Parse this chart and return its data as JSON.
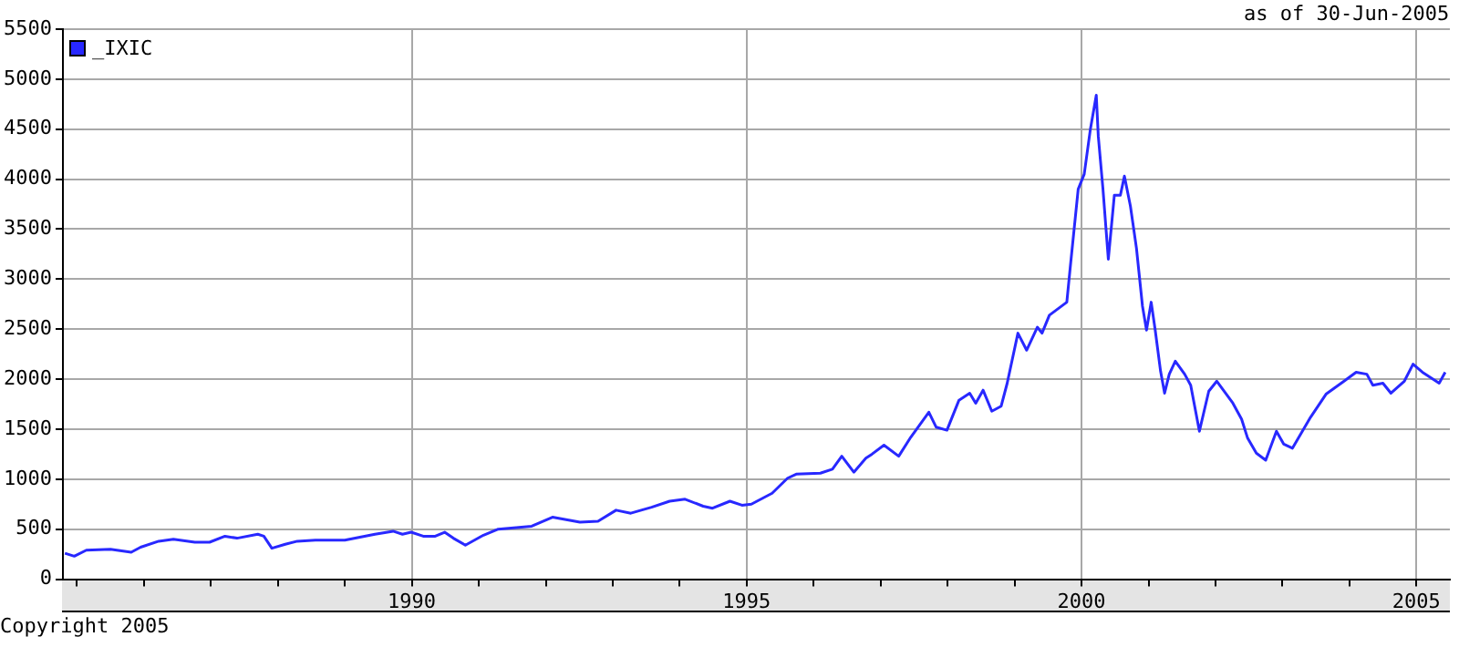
{
  "chart_data": {
    "type": "line",
    "annotations": [
      "as of 30-Jun-2005",
      "Copyright 2005"
    ],
    "xlim": [
      1984.79,
      2005.5
    ],
    "xticks": [
      {
        "value": 1985,
        "label": null
      },
      {
        "value": 1986,
        "label": null
      },
      {
        "value": 1987,
        "label": null
      },
      {
        "value": 1988,
        "label": null
      },
      {
        "value": 1989,
        "label": null
      },
      1990,
      {
        "value": 1991,
        "label": null
      },
      {
        "value": 1992,
        "label": null
      },
      {
        "value": 1993,
        "label": null
      },
      {
        "value": 1994,
        "label": null
      },
      1995,
      {
        "value": 1996,
        "label": null
      },
      {
        "value": 1997,
        "label": null
      },
      {
        "value": 1998,
        "label": null
      },
      {
        "value": 1999,
        "label": null
      },
      2000,
      {
        "value": 2001,
        "label": null
      },
      {
        "value": 2002,
        "label": null
      },
      {
        "value": 2003,
        "label": null
      },
      {
        "value": 2004,
        "label": null
      },
      2005
    ],
    "ylim": [
      0,
      5500
    ],
    "yticks": [
      0,
      500,
      1000,
      1500,
      2000,
      2500,
      3000,
      3500,
      4000,
      4500,
      5000,
      5500
    ],
    "grid": true,
    "legend": "top left",
    "marker": "none",
    "line_style": "solid",
    "series": [
      {
        "name": "_IXIC",
        "color": "#2828ff",
        "x": [
          1984.82,
          1984.96,
          1985.14,
          1985.5,
          1985.81,
          1985.95,
          1986.22,
          1986.44,
          1986.76,
          1986.98,
          1987.21,
          1987.39,
          1987.7,
          1987.79,
          1987.91,
          1988.11,
          1988.29,
          1988.56,
          1989.0,
          1989.45,
          1989.72,
          1989.86,
          1989.99,
          1990.17,
          1990.35,
          1990.49,
          1990.62,
          1990.8,
          1991.07,
          1991.29,
          1991.79,
          1992.1,
          1992.51,
          1992.78,
          1993.05,
          1993.27,
          1993.58,
          1993.85,
          1994.08,
          1994.35,
          1994.49,
          1994.75,
          1994.93,
          1995.07,
          1995.38,
          1995.61,
          1995.74,
          1996.1,
          1996.28,
          1996.42,
          1996.6,
          1996.78,
          1996.87,
          1997.05,
          1997.27,
          1997.45,
          1997.72,
          1997.83,
          1997.99,
          1998.17,
          1998.33,
          1998.42,
          1998.53,
          1998.66,
          1998.8,
          1998.89,
          1999.05,
          1999.18,
          1999.34,
          1999.41,
          1999.52,
          1999.78,
          1999.83,
          1999.95,
          2000.04,
          2000.13,
          2000.22,
          2000.25,
          2000.32,
          2000.4,
          2000.49,
          2000.58,
          2000.64,
          2000.73,
          2000.82,
          2000.91,
          2000.97,
          2001.04,
          2001.1,
          2001.18,
          2001.24,
          2001.31,
          2001.4,
          2001.54,
          2001.63,
          2001.76,
          2001.9,
          2002.02,
          2002.26,
          2002.39,
          2002.48,
          2002.61,
          2002.75,
          2002.91,
          2003.02,
          2003.15,
          2003.42,
          2003.65,
          2003.92,
          2004.1,
          2004.26,
          2004.35,
          2004.5,
          2004.62,
          2004.82,
          2004.95,
          2005.09,
          2005.34,
          2005.43
        ],
        "values": [
          260,
          230,
          290,
          300,
          270,
          320,
          380,
          400,
          370,
          370,
          430,
          410,
          450,
          430,
          310,
          350,
          380,
          390,
          390,
          450,
          480,
          450,
          470,
          430,
          430,
          470,
          410,
          340,
          440,
          500,
          530,
          620,
          570,
          580,
          690,
          660,
          720,
          780,
          800,
          730,
          710,
          780,
          740,
          750,
          860,
          1010,
          1050,
          1060,
          1100,
          1230,
          1070,
          1210,
          1250,
          1340,
          1230,
          1420,
          1670,
          1520,
          1490,
          1790,
          1860,
          1760,
          1890,
          1680,
          1730,
          1960,
          2460,
          2290,
          2520,
          2460,
          2640,
          2770,
          3110,
          3900,
          4050,
          4490,
          4840,
          4430,
          3900,
          3200,
          3840,
          3840,
          4030,
          3730,
          3310,
          2730,
          2490,
          2770,
          2490,
          2080,
          1860,
          2050,
          2180,
          2050,
          1940,
          1480,
          1880,
          1980,
          1760,
          1600,
          1410,
          1260,
          1190,
          1480,
          1350,
          1310,
          1620,
          1850,
          1980,
          2070,
          2050,
          1940,
          1960,
          1860,
          1980,
          2150,
          2070,
          1960,
          2070
        ]
      }
    ]
  }
}
